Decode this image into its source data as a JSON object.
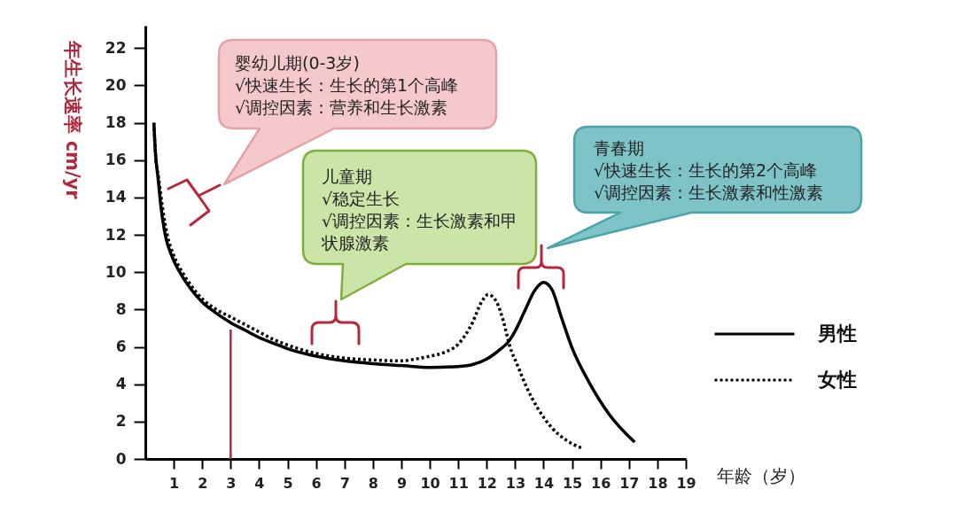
{
  "chart_data": {
    "type": "line",
    "xlabel": "年龄（岁）",
    "ylabel": "年生长速率 cm/yr",
    "xlim": [
      0,
      19
    ],
    "xticks": [
      1,
      2,
      3,
      4,
      5,
      6,
      7,
      8,
      9,
      10,
      11,
      12,
      13,
      14,
      15,
      16,
      17,
      18,
      19
    ],
    "ylim": [
      0,
      23.2
    ],
    "yticks": [
      0,
      2,
      4,
      6,
      8,
      10,
      12,
      14,
      16,
      18,
      20,
      22
    ],
    "legend": "right",
    "series": [
      {
        "name": "男性",
        "color": "#000000",
        "line_style": "solid",
        "x": [
          0.3,
          0.35,
          0.45,
          0.55,
          0.7,
          0.95,
          1.25,
          1.6,
          2.0,
          2.5,
          3.0,
          3.5,
          4.0,
          4.5,
          5.0,
          6.0,
          7.0,
          8.0,
          9.0,
          10.0,
          11.0,
          11.5,
          12.0,
          12.25,
          12.5,
          12.75,
          13.0,
          13.3,
          13.7,
          14.0,
          14.3,
          14.6,
          15.0,
          15.6,
          16.3,
          17.2
        ],
        "values": [
          18.0,
          16.5,
          15.0,
          13.5,
          12.0,
          10.8,
          9.9,
          9.1,
          8.4,
          7.8,
          7.3,
          6.9,
          6.5,
          6.2,
          5.9,
          5.5,
          5.25,
          5.1,
          5.0,
          4.9,
          4.95,
          5.05,
          5.35,
          5.6,
          5.9,
          6.25,
          6.85,
          7.8,
          9.05,
          9.45,
          9.05,
          7.7,
          5.95,
          4.1,
          2.4,
          0.9
        ]
      },
      {
        "name": "女性",
        "color": "#000000",
        "line_style": "dotted",
        "x": [
          0.3,
          0.35,
          0.47,
          0.6,
          0.77,
          1.0,
          1.3,
          1.65,
          2.05,
          2.5,
          3.0,
          3.5,
          4.0,
          4.5,
          5.0,
          6.0,
          7.0,
          8.0,
          9.0,
          9.5,
          10.0,
          10.5,
          11.0,
          11.5,
          11.8,
          12.05,
          12.35,
          12.6,
          12.8,
          13.1,
          13.4,
          13.8,
          14.3,
          14.8,
          15.4
        ],
        "values": [
          18.0,
          16.5,
          15.0,
          13.5,
          12.0,
          10.9,
          10.0,
          9.2,
          8.5,
          8.0,
          7.6,
          7.2,
          6.8,
          6.4,
          6.1,
          5.65,
          5.4,
          5.3,
          5.25,
          5.35,
          5.5,
          5.7,
          6.15,
          7.3,
          8.35,
          8.8,
          8.4,
          7.3,
          6.1,
          4.95,
          3.85,
          2.7,
          1.65,
          1.0,
          0.55
        ]
      }
    ],
    "ref_lines": [
      {
        "axis": "x",
        "value": 3,
        "color": "#b5283c"
      }
    ],
    "annotations": [
      "婴幼儿期(0-3岁)\n√快速生长：生长的第1个高峰\n√调控因素：营养和生长激素",
      "儿童期\n√稳定生长\n√调控因素：生长激素和甲状腺激素",
      "青春期\n√快速生长：生长的第2个高峰\n√调控因素：生长激素和性激素"
    ]
  }
}
